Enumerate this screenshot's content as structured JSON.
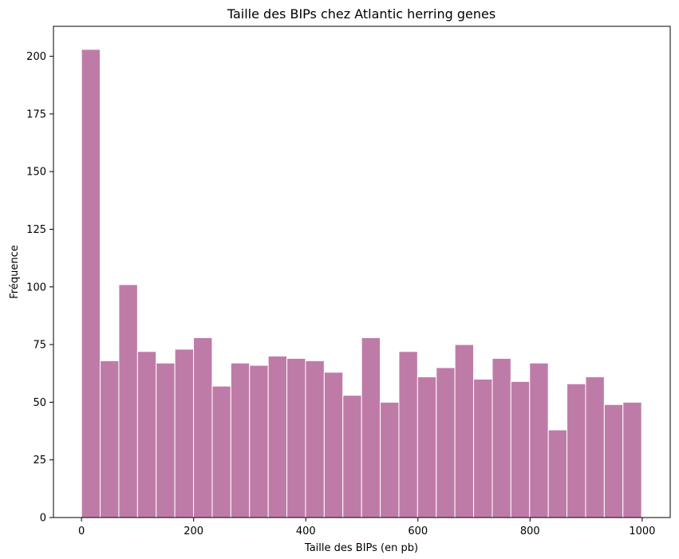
{
  "chart_data": {
    "type": "bar",
    "title": "Taille des BIPs chez Atlantic herring genes",
    "xlabel": "Taille des BIPs (en pb)",
    "ylabel": "Fréquence",
    "bin_start": 0,
    "bin_width": 33.3,
    "values": [
      203,
      68,
      101,
      72,
      67,
      73,
      78,
      57,
      67,
      66,
      70,
      69,
      68,
      63,
      53,
      78,
      50,
      72,
      61,
      65,
      75,
      60,
      69,
      59,
      67,
      38,
      58,
      61,
      49,
      50
    ],
    "xlim": [
      -50,
      1050
    ],
    "ylim": [
      0,
      213
    ],
    "xticks": [
      0,
      200,
      400,
      600,
      800,
      1000
    ],
    "yticks": [
      0,
      25,
      50,
      75,
      100,
      125,
      150,
      175,
      200
    ],
    "bar_color": "#bf7ba8",
    "edge_color": "#ffffff",
    "grid": false
  }
}
